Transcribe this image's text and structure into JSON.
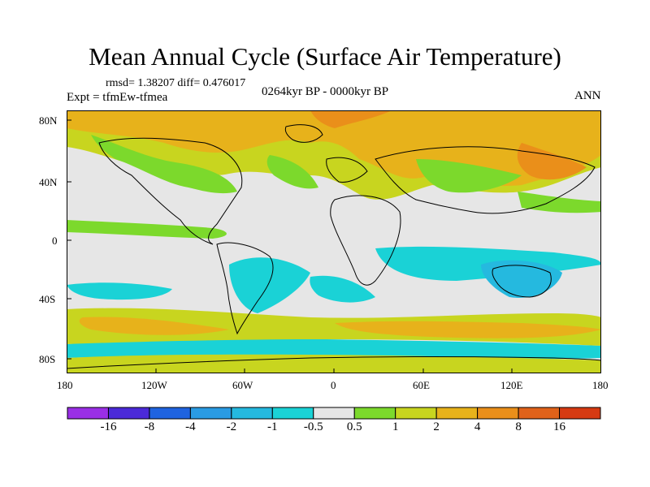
{
  "title": "Mean Annual Cycle (Surface Air Temperature)",
  "stats": "rmsd= 1.38207 diff= 0.476017",
  "experiment": "Expt = tfmEw-tfmea",
  "period": "0264kyr BP - 0000kyr BP",
  "season": "ANN",
  "map": {
    "y_ticks": [
      "80N",
      "40N",
      "0",
      "40S",
      "80S"
    ],
    "x_ticks": [
      "180",
      "120W",
      "60W",
      "0",
      "60E",
      "120E",
      "180"
    ]
  },
  "colorbar": {
    "labels": [
      "-16",
      "-8",
      "-4",
      "-2",
      "-1",
      "-0.5",
      "0.5",
      "1",
      "2",
      "4",
      "8",
      "16"
    ],
    "colors": [
      "#9a2fe6",
      "#4b2ad8",
      "#1f63e0",
      "#2a9be3",
      "#25b9df",
      "#1ad2d6",
      "#e6e6e6",
      "#7cd92c",
      "#c8d51f",
      "#e7b21b",
      "#ea8f1a",
      "#e0621a",
      "#d63a12"
    ]
  },
  "colors": {
    "zero": "#e6e6e6",
    "neg_weak": "#1ad2d6",
    "neg_mid": "#25b9df",
    "pos_weak": "#7cd92c",
    "pos_mid": "#c8d51f",
    "pos_strong": "#e7b21b",
    "pos_stronger": "#ea8f1a"
  }
}
